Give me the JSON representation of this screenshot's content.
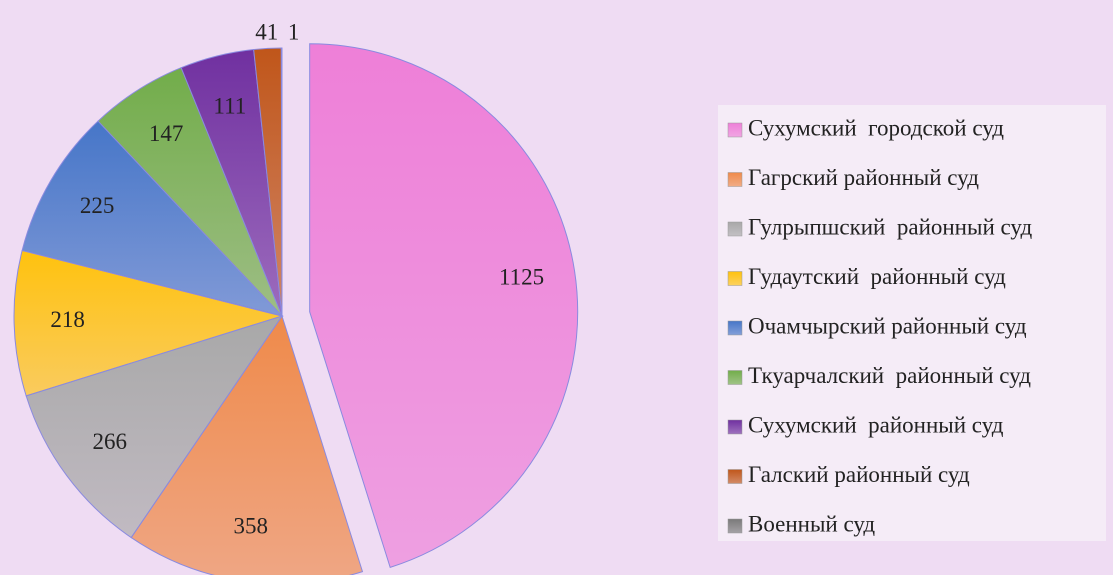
{
  "chart_data": {
    "type": "pie",
    "categories": [
      "Сухумский  городской суд",
      "Гагрский районный суд",
      "Гулрыпшский  районный суд",
      "Гудаутский  районный суд",
      "Очамчырский районный суд",
      "Ткуарчалский  районный суд",
      "Сухумский  районный суд",
      "Галский районный суд",
      "Военный суд"
    ],
    "values": [
      1125,
      358,
      266,
      218,
      225,
      147,
      111,
      41,
      1
    ],
    "colors": [
      "#ee7fd8",
      "#ef8a4a",
      "#a8a8a8",
      "#ffc20e",
      "#4676c8",
      "#72ad4a",
      "#7030a0",
      "#c0561a",
      "#7a7a7a"
    ],
    "exploded": [
      0
    ],
    "legend": "right"
  }
}
